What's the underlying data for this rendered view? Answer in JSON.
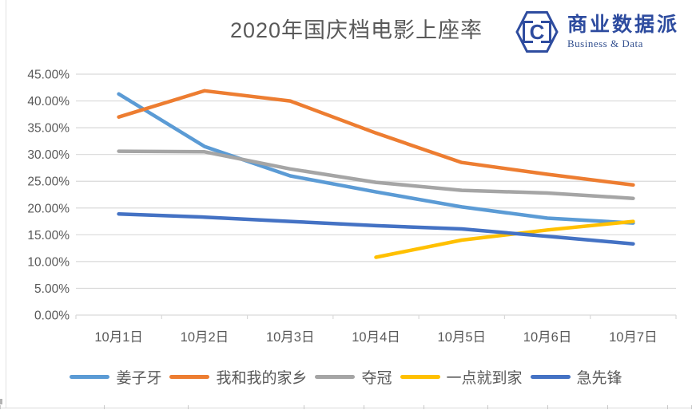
{
  "header": {
    "title": "2020年国庆档电影上座率"
  },
  "logo": {
    "icon": "hexagon-c-logo-icon",
    "name_cn": "商业数据派",
    "name_en": "Business & Data",
    "brand_color": "#2E4C9F"
  },
  "colors": {
    "gridline": "#d9d9d9",
    "axis_text": "#595959",
    "title_text": "#595959"
  },
  "chart_data": {
    "type": "line",
    "title": "2020年国庆档电影上座率",
    "categories": [
      "10月1日",
      "10月2日",
      "10月3日",
      "10月4日",
      "10月5日",
      "10月6日",
      "10月7日"
    ],
    "series": [
      {
        "name": "姜子牙",
        "color": "#5B9BD5",
        "values": [
          41.3,
          31.5,
          26.0,
          23.0,
          20.2,
          18.1,
          17.2
        ]
      },
      {
        "name": "我和我的家乡",
        "color": "#ED7D31",
        "values": [
          37.0,
          41.9,
          40.0,
          34.0,
          28.5,
          26.3,
          24.3
        ]
      },
      {
        "name": "夺冠",
        "color": "#A5A5A5",
        "values": [
          30.6,
          30.5,
          27.3,
          24.8,
          23.3,
          22.8,
          21.8
        ]
      },
      {
        "name": "一点就到家",
        "color": "#FFC000",
        "values": [
          null,
          null,
          null,
          10.8,
          14.0,
          15.9,
          17.5
        ]
      },
      {
        "name": "急先锋",
        "color": "#4472C4",
        "values": [
          18.9,
          18.3,
          17.5,
          16.7,
          16.1,
          14.7,
          13.3
        ]
      }
    ],
    "xlabel": "",
    "ylabel": "",
    "ylim": [
      0,
      45
    ],
    "ytick_step": 5,
    "ytick_labels": [
      "0.00%",
      "5.00%",
      "10.00%",
      "15.00%",
      "20.00%",
      "25.00%",
      "30.00%",
      "35.00%",
      "40.00%",
      "45.00%"
    ],
    "grid": true,
    "legend_position": "bottom"
  }
}
